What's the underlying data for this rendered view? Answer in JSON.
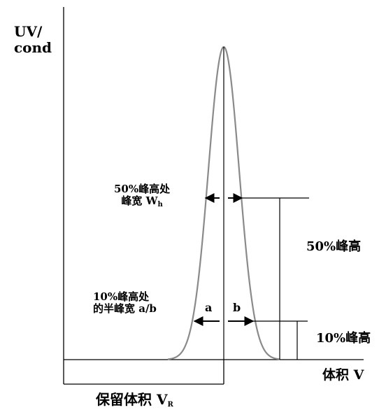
{
  "labels": {
    "y_axis_line1": "UV/",
    "y_axis_line2": "cond",
    "width50_line1": "50%峰高处",
    "width50_line2": "峰宽 W",
    "width50_sub": "h",
    "width10_line1": "10%峰高处",
    "width10_line2": "的半峰宽 a/b",
    "a": "a",
    "b": "b",
    "height50": "50%峰高",
    "height10": "10%峰高",
    "retention_volume": "保留体积 V",
    "retention_sub": "R",
    "x_axis": "体积 V"
  },
  "colors": {
    "line": "#000000",
    "peak": "#8a8a8a"
  }
}
